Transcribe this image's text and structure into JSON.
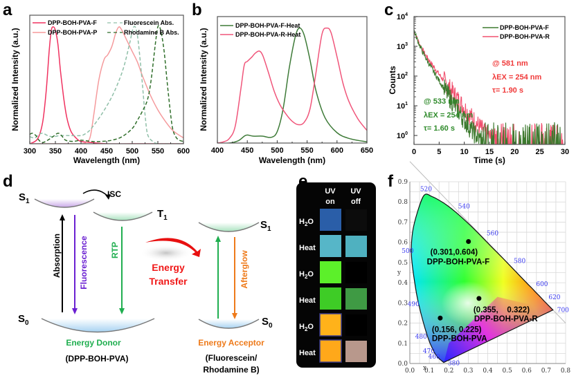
{
  "figure": {
    "panel_labels": {
      "a": "a",
      "b": "b",
      "c": "c",
      "d": "d",
      "e": "e",
      "f": "f"
    }
  },
  "chart_data": [
    {
      "id": "a",
      "type": "line",
      "title": "",
      "xlabel": "Wavelength (nm)",
      "ylabel": "Normalized Intensity (a.u.)",
      "xlim": [
        300,
        600
      ],
      "ylim": [
        0,
        1.1
      ],
      "xticks": [
        300,
        350,
        400,
        450,
        500,
        550,
        600
      ],
      "legend_position": "top",
      "series": [
        {
          "name": "DPP-BOH-PVA-F",
          "color": "#f0315f",
          "style": "solid",
          "x": [
            300,
            315,
            325,
            332,
            338,
            342,
            346,
            350,
            355,
            360,
            366,
            372,
            380,
            390,
            400,
            420,
            450,
            500,
            550,
            600
          ],
          "y": [
            0.0,
            0.04,
            0.18,
            0.45,
            0.8,
            0.97,
            1.0,
            0.97,
            0.85,
            0.62,
            0.4,
            0.23,
            0.11,
            0.05,
            0.02,
            0.01,
            0.0,
            0.0,
            0.0,
            0.0
          ]
        },
        {
          "name": "DPP-BOH-PVA-P",
          "color": "#f59a9c",
          "style": "solid",
          "x": [
            300,
            380,
            400,
            410,
            418,
            425,
            435,
            445,
            452,
            460,
            468,
            474,
            480,
            490,
            500,
            510,
            520,
            535,
            550,
            565,
            580,
            600
          ],
          "y": [
            0.0,
            0.0,
            0.0,
            0.01,
            0.06,
            0.25,
            0.55,
            0.72,
            0.76,
            0.83,
            0.95,
            1.0,
            0.97,
            0.88,
            0.79,
            0.7,
            0.58,
            0.42,
            0.29,
            0.19,
            0.11,
            0.05
          ]
        },
        {
          "name": "Fluorescein Abs.",
          "color": "#8fbfa8",
          "style": "dashed",
          "x": [
            300,
            310,
            318,
            325,
            335,
            345,
            360,
            380,
            400,
            410,
            420,
            440,
            460,
            475,
            485,
            495,
            503,
            510,
            518,
            525,
            530,
            540,
            550,
            560,
            600
          ],
          "y": [
            0.06,
            0.05,
            0.08,
            0.09,
            0.07,
            0.06,
            0.07,
            0.07,
            0.07,
            0.09,
            0.13,
            0.25,
            0.4,
            0.55,
            0.68,
            0.86,
            1.0,
            0.93,
            0.6,
            0.25,
            0.08,
            0.02,
            0.0,
            0.0,
            0.0
          ]
        },
        {
          "name": "Rhodamine B Abs.",
          "color": "#2f6e2a",
          "style": "dashed",
          "x": [
            300,
            305,
            312,
            318,
            325,
            335,
            345,
            355,
            362,
            370,
            385,
            400,
            420,
            440,
            460,
            480,
            500,
            510,
            520,
            530,
            537,
            545,
            550,
            555,
            562,
            570,
            578,
            585,
            592,
            600
          ],
          "y": [
            0.08,
            0.09,
            0.07,
            0.03,
            0.01,
            0.03,
            0.06,
            0.09,
            0.07,
            0.03,
            0.02,
            0.03,
            0.02,
            0.02,
            0.03,
            0.06,
            0.13,
            0.2,
            0.28,
            0.38,
            0.55,
            0.85,
            1.0,
            0.98,
            0.8,
            0.45,
            0.15,
            0.06,
            0.03,
            0.02
          ]
        }
      ]
    },
    {
      "id": "b",
      "type": "line",
      "title": "",
      "xlabel": "Wavelength (nm)",
      "ylabel": "Normalized Intensity (a.u.)",
      "xlim": [
        400,
        650
      ],
      "ylim": [
        0,
        1.1
      ],
      "xticks": [
        400,
        450,
        500,
        550,
        600,
        650
      ],
      "legend_position": "top-left",
      "series": [
        {
          "name": "DPP-BOH-PVA-F-Heat",
          "color": "#3d7a37",
          "style": "solid",
          "x": [
            400,
            420,
            435,
            445,
            450,
            460,
            475,
            490,
            500,
            510,
            520,
            530,
            537,
            545,
            555,
            565,
            580,
            600,
            620,
            650
          ],
          "y": [
            0.0,
            0.0,
            0.02,
            0.06,
            0.07,
            0.06,
            0.06,
            0.05,
            0.1,
            0.3,
            0.65,
            0.92,
            1.0,
            0.94,
            0.72,
            0.45,
            0.22,
            0.09,
            0.04,
            0.01
          ]
        },
        {
          "name": "DPP-BOH-PVA-R-Heat",
          "color": "#f0557a",
          "style": "solid",
          "x": [
            400,
            410,
            420,
            430,
            440,
            445,
            450,
            458,
            463,
            470,
            476,
            485,
            495,
            505,
            515,
            525,
            535,
            545,
            555,
            565,
            575,
            583,
            590,
            600,
            610,
            620,
            635,
            650
          ],
          "y": [
            0.0,
            0.01,
            0.04,
            0.15,
            0.5,
            0.68,
            0.71,
            0.75,
            0.78,
            0.8,
            0.76,
            0.62,
            0.45,
            0.33,
            0.25,
            0.19,
            0.16,
            0.18,
            0.3,
            0.62,
            0.95,
            1.0,
            0.96,
            0.75,
            0.52,
            0.36,
            0.21,
            0.11
          ]
        }
      ]
    },
    {
      "id": "c",
      "type": "line",
      "title": "",
      "xlabel": "Time (s)",
      "ylabel": "Counts",
      "xlim": [
        0,
        30
      ],
      "ylim": [
        0.5,
        10000
      ],
      "yscale": "log",
      "xticks": [
        0,
        5,
        10,
        15,
        20,
        25,
        30
      ],
      "yticks": [
        "10^0",
        "10^1",
        "10^2",
        "10^3",
        "10^4"
      ],
      "legend_position": "top-right",
      "series": [
        {
          "name": "DPP-BOH-PVA-F",
          "color": "#3d7a2f",
          "start_counts": 3500,
          "lifetime_s": 1.6,
          "noise_floor_s": 15
        },
        {
          "name": "DPP-BOH-PVA-R",
          "color": "#f0506e",
          "start_counts": 3500,
          "lifetime_s": 1.9,
          "noise_floor_s": 18
        }
      ],
      "annotations": [
        {
          "lines": [
            "@ 581 nm",
            "λEX = 254 nm",
            "τ= 1.90 s"
          ],
          "color": "#f03a3a"
        },
        {
          "lines": [
            "@ 533 nm",
            "λEX = 254 nm",
            "τ= 1.60 s"
          ],
          "color": "#2e8a2a"
        }
      ]
    },
    {
      "id": "f",
      "type": "scatter",
      "title": "",
      "xlabel": "x",
      "ylabel": "y",
      "xlim": [
        0.0,
        0.8
      ],
      "ylim": [
        0.0,
        0.9
      ],
      "grid": true,
      "xticks": [
        "0.0",
        "0.1",
        "0.2",
        "0.3",
        "0.4",
        "0.5",
        "0.6",
        "0.7",
        "0.8"
      ],
      "yticks": [
        "0.0",
        "0.1",
        "0.2",
        "0.3",
        "0.4",
        "0.5",
        "0.6",
        "0.7",
        "0.8",
        "0.9"
      ],
      "wavelength_labels": [
        {
          "nm": "380",
          "x": 0.174,
          "y": 0.005
        },
        {
          "nm": "460",
          "x": 0.144,
          "y": 0.03
        },
        {
          "nm": "470",
          "x": 0.124,
          "y": 0.058
        },
        {
          "nm": "480",
          "x": 0.091,
          "y": 0.133
        },
        {
          "nm": "490",
          "x": 0.045,
          "y": 0.295
        },
        {
          "nm": "500",
          "x": 0.008,
          "y": 0.538
        },
        {
          "nm": "520",
          "x": 0.074,
          "y": 0.834
        },
        {
          "nm": "540",
          "x": 0.23,
          "y": 0.754
        },
        {
          "nm": "560",
          "x": 0.373,
          "y": 0.624
        },
        {
          "nm": "580",
          "x": 0.512,
          "y": 0.487
        },
        {
          "nm": "600",
          "x": 0.627,
          "y": 0.373
        },
        {
          "nm": "620",
          "x": 0.691,
          "y": 0.308
        },
        {
          "nm": "700",
          "x": 0.735,
          "y": 0.265
        }
      ],
      "points": [
        {
          "label": "DPP-BOH-PVA-F",
          "coord_text": "(0.301,0.604)",
          "x": 0.301,
          "y": 0.604
        },
        {
          "label": "DPP-BOH-PVA-R",
          "coord_text": "(0.355,    0.322)",
          "x": 0.355,
          "y": 0.322
        },
        {
          "label": "DPP-BOH-PVA",
          "coord_text": "(0.156, 0.225)",
          "x": 0.156,
          "y": 0.225
        }
      ]
    }
  ],
  "diagram_d": {
    "donor_levels": {
      "s1": "S",
      "s1_sub": "1",
      "t1": "T",
      "t1_sub": "1",
      "s0": "S",
      "s0_sub": "0"
    },
    "acceptor_levels": {
      "s1": "S",
      "s1_sub": "1",
      "s0": "S",
      "s0_sub": "0"
    },
    "isc": "ISC",
    "transitions": {
      "absorption": {
        "label": "Absorption",
        "color": "#000000"
      },
      "fluorescence": {
        "label": "Fluorescence",
        "color": "#6a1fd1"
      },
      "rtp": {
        "label": "RTP",
        "color": "#1fae4f"
      },
      "acceptor_up": {
        "label": "",
        "color": "#1fae4f"
      },
      "afterglow": {
        "label": "Afterglow",
        "color": "#ee7a1a"
      }
    },
    "energy_transfer": [
      "Energy",
      "Transfer"
    ],
    "donor_title": "Energy Donor",
    "donor_sub": "(DPP-BOH-PVA)",
    "acceptor_title": "Energy Acceptor",
    "acceptor_sub": [
      "(Fluorescein/",
      "Rhodamine B)"
    ],
    "colors": {
      "donor": "#1fae4f",
      "acceptor": "#ee7a1a",
      "transfer": "#f01818"
    }
  },
  "photo_e": {
    "columns": [
      [
        "UV",
        "on"
      ],
      [
        "UV",
        "off"
      ]
    ],
    "rows": [
      {
        "label": "H2O",
        "on": "#2a5ea8",
        "off": "#0c0c0c"
      },
      {
        "label": "Heat",
        "on": "#56b6c8",
        "off": "#4fb1c0"
      },
      {
        "label": "H2O",
        "on": "#5cf02a",
        "off": "#000000"
      },
      {
        "label": "Heat",
        "on": "#3ecc26",
        "off": "#3f9a44"
      },
      {
        "label": "H2O",
        "on": "#ffb21a",
        "off": "#000000"
      },
      {
        "label": "Heat",
        "on": "#ffa81a",
        "off": "#b8988c"
      }
    ]
  }
}
